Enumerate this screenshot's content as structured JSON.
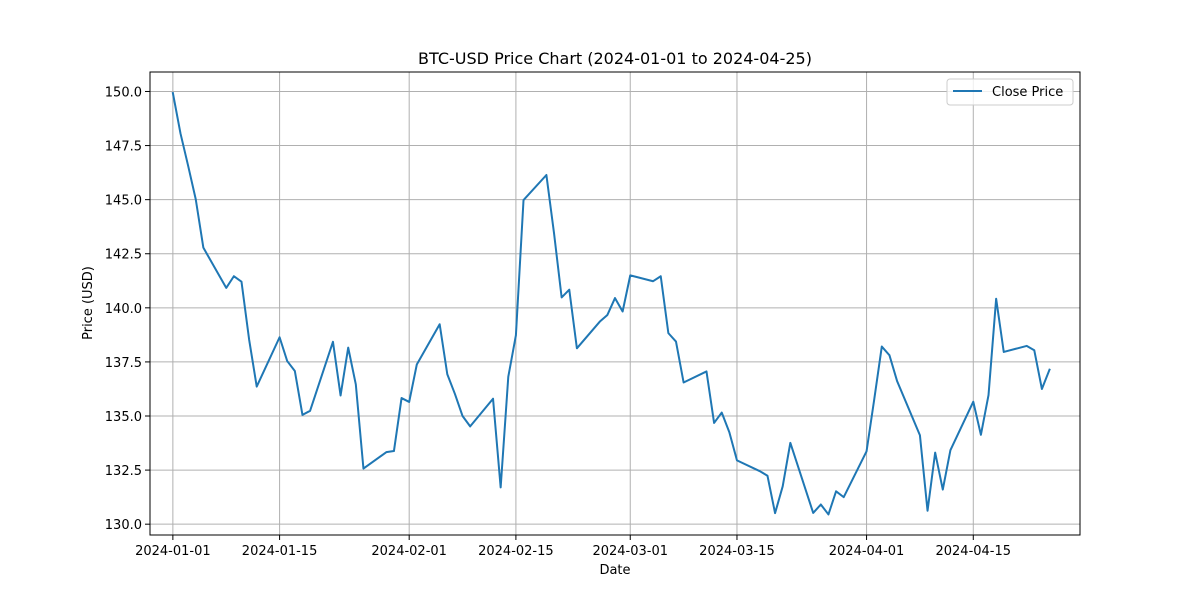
{
  "chart_data": {
    "type": "line",
    "title": "BTC-USD Price Chart (2024-01-01 to 2024-04-25)",
    "xlabel": "Date",
    "ylabel": "Price (USD)",
    "xlim": [
      "2023-12-29",
      "2024-04-29"
    ],
    "ylim": [
      129.5,
      150.9
    ],
    "x_ticks": [
      "2024-01-01",
      "2024-01-15",
      "2024-02-01",
      "2024-02-15",
      "2024-03-01",
      "2024-03-15",
      "2024-04-01",
      "2024-04-15"
    ],
    "y_ticks": [
      130.0,
      132.5,
      135.0,
      137.5,
      140.0,
      142.5,
      145.0,
      147.5,
      150.0
    ],
    "grid": true,
    "legend_position": "upper right",
    "series": [
      {
        "name": "Close Price",
        "color": "#1f77b4",
        "x": [
          "2024-01-01",
          "2024-01-02",
          "2024-01-03",
          "2024-01-04",
          "2024-01-05",
          "2024-01-08",
          "2024-01-09",
          "2024-01-10",
          "2024-01-11",
          "2024-01-12",
          "2024-01-15",
          "2024-01-16",
          "2024-01-17",
          "2024-01-18",
          "2024-01-19",
          "2024-01-22",
          "2024-01-23",
          "2024-01-24",
          "2024-01-25",
          "2024-01-26",
          "2024-01-29",
          "2024-01-30",
          "2024-01-31",
          "2024-02-01",
          "2024-02-02",
          "2024-02-05",
          "2024-02-06",
          "2024-02-07",
          "2024-02-08",
          "2024-02-09",
          "2024-02-12",
          "2024-02-13",
          "2024-02-14",
          "2024-02-15",
          "2024-02-16",
          "2024-02-19",
          "2024-02-20",
          "2024-02-21",
          "2024-02-22",
          "2024-02-23",
          "2024-02-26",
          "2024-02-27",
          "2024-02-28",
          "2024-02-29",
          "2024-03-01",
          "2024-03-04",
          "2024-03-05",
          "2024-03-06",
          "2024-03-07",
          "2024-03-08",
          "2024-03-11",
          "2024-03-12",
          "2024-03-13",
          "2024-03-14",
          "2024-03-15",
          "2024-03-18",
          "2024-03-19",
          "2024-03-20",
          "2024-03-21",
          "2024-03-22",
          "2024-03-25",
          "2024-03-26",
          "2024-03-27",
          "2024-03-28",
          "2024-03-29",
          "2024-04-01",
          "2024-04-02",
          "2024-04-03",
          "2024-04-04",
          "2024-04-05",
          "2024-04-08",
          "2024-04-09",
          "2024-04-10",
          "2024-04-11",
          "2024-04-12",
          "2024-04-15",
          "2024-04-16",
          "2024-04-17",
          "2024-04-18",
          "2024-04-19",
          "2024-04-22",
          "2024-04-23",
          "2024-04-24",
          "2024-04-25"
        ],
        "y": [
          149.93,
          148.06,
          146.57,
          145.02,
          142.78,
          140.92,
          141.46,
          141.21,
          138.54,
          136.36,
          138.64,
          137.54,
          137.08,
          135.05,
          135.24,
          138.43,
          135.95,
          138.16,
          136.46,
          132.57,
          133.33,
          133.38,
          135.83,
          135.65,
          137.38,
          139.24,
          136.93,
          136.02,
          135.0,
          134.52,
          135.8,
          131.7,
          136.81,
          138.73,
          144.98,
          146.14,
          143.45,
          140.48,
          140.84,
          138.13,
          139.36,
          139.67,
          140.45,
          139.83,
          141.5,
          141.23,
          141.46,
          138.83,
          138.44,
          136.55,
          137.06,
          134.68,
          135.16,
          134.25,
          132.95,
          132.45,
          132.24,
          130.51,
          131.75,
          133.76,
          130.52,
          130.91,
          130.45,
          131.52,
          131.25,
          133.37,
          135.75,
          138.21,
          137.81,
          136.62,
          134.11,
          130.62,
          133.31,
          131.6,
          133.42,
          135.66,
          134.13,
          135.97,
          140.42,
          137.96,
          138.24,
          138.04,
          136.25,
          137.14
        ]
      }
    ]
  }
}
